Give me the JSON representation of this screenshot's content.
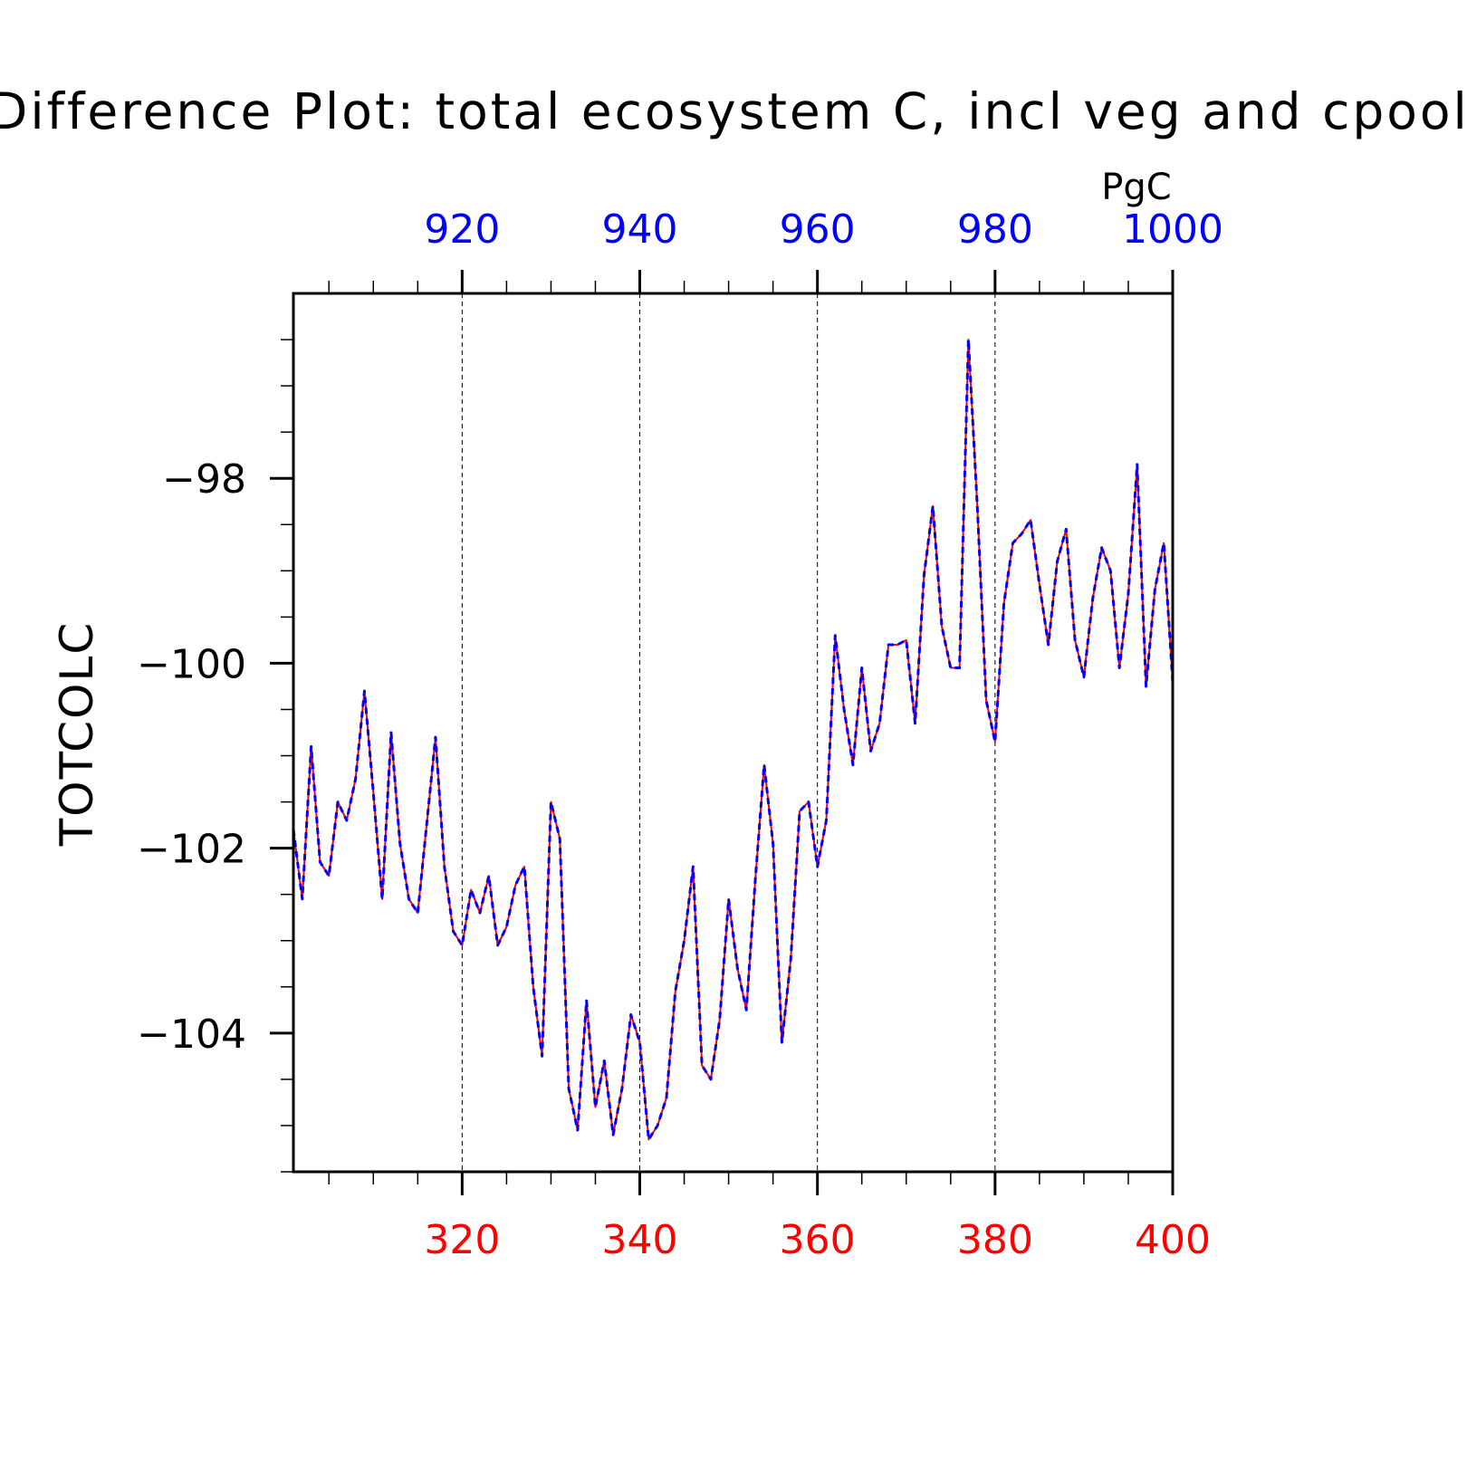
{
  "chart_data": {
    "type": "line",
    "title": "Difference Plot: total ecosystem C, incl veg and cpool",
    "ylabel": "TOTCOLC",
    "units": "PgC",
    "xlim": [
      301,
      400
    ],
    "x_top_lim": [
      901,
      1000
    ],
    "ylim": [
      -105.5,
      -96
    ],
    "x_ticks_bottom": [
      "320",
      "340",
      "360",
      "380",
      "400"
    ],
    "x_ticks_top": [
      "920",
      "940",
      "960",
      "980",
      "1000"
    ],
    "y_ticks": [
      "−98",
      "−100",
      "−102",
      "−104"
    ],
    "y_tick_values": [
      -98,
      -100,
      -102,
      -104
    ],
    "grid": "vertical dashed at major x ticks",
    "colors": {
      "bottom_axis": "#ff0000",
      "top_axis": "#0000ff",
      "text": "#000000"
    },
    "x": [
      301,
      302,
      303,
      304,
      305,
      306,
      307,
      308,
      309,
      310,
      311,
      312,
      313,
      314,
      315,
      316,
      317,
      318,
      319,
      320,
      321,
      322,
      323,
      324,
      325,
      326,
      327,
      328,
      329,
      330,
      331,
      332,
      333,
      334,
      335,
      336,
      337,
      338,
      339,
      340,
      341,
      342,
      343,
      344,
      345,
      346,
      347,
      348,
      349,
      350,
      351,
      352,
      353,
      354,
      355,
      356,
      357,
      358,
      359,
      360,
      361,
      362,
      363,
      364,
      365,
      366,
      367,
      368,
      369,
      370,
      371,
      372,
      373,
      374,
      375,
      376,
      377,
      378,
      379,
      380,
      381,
      382,
      383,
      384,
      385,
      386,
      387,
      388,
      389,
      390,
      391,
      392,
      393,
      394,
      395,
      396,
      397,
      398,
      399,
      400
    ],
    "series": [
      {
        "name": "",
        "color": "#ff0000",
        "dash": "solid",
        "values": [
          -101.8,
          -102.55,
          -100.9,
          -102.15,
          -102.3,
          -101.5,
          -101.7,
          -101.25,
          -100.3,
          -101.4,
          -102.55,
          -100.75,
          -101.95,
          -102.55,
          -102.7,
          -101.75,
          -100.8,
          -102.2,
          -102.9,
          -103.05,
          -102.45,
          -102.7,
          -102.3,
          -103.05,
          -102.85,
          -102.4,
          -102.2,
          -103.5,
          -104.25,
          -101.5,
          -101.9,
          -104.6,
          -105.05,
          -103.65,
          -104.8,
          -104.3,
          -105.1,
          -104.6,
          -103.8,
          -104.1,
          -105.15,
          -105.0,
          -104.7,
          -103.55,
          -103.0,
          -102.2,
          -104.35,
          -104.5,
          -103.85,
          -102.55,
          -103.3,
          -103.75,
          -102.35,
          -101.1,
          -101.95,
          -104.1,
          -103.2,
          -101.6,
          -101.5,
          -102.2,
          -101.7,
          -99.7,
          -100.5,
          -101.1,
          -100.05,
          -100.95,
          -100.65,
          -99.8,
          -99.8,
          -99.75,
          -100.65,
          -99.05,
          -98.3,
          -99.6,
          -100.05,
          -100.05,
          -96.5,
          -98.3,
          -100.4,
          -100.85,
          -99.35,
          -98.7,
          -98.6,
          -98.45,
          -99.15,
          -99.8,
          -98.9,
          -98.55,
          -99.75,
          -100.15,
          -99.3,
          -98.75,
          -99.0,
          -100.05,
          -99.25,
          -97.85,
          -100.25,
          -99.2,
          -98.7,
          -100.2
        ]
      },
      {
        "name": "",
        "color": "#0000ff",
        "dash": "dashed",
        "values": [
          -101.8,
          -102.55,
          -100.9,
          -102.15,
          -102.3,
          -101.5,
          -101.7,
          -101.25,
          -100.3,
          -101.4,
          -102.55,
          -100.75,
          -101.95,
          -102.55,
          -102.7,
          -101.75,
          -100.8,
          -102.2,
          -102.9,
          -103.05,
          -102.45,
          -102.7,
          -102.3,
          -103.05,
          -102.85,
          -102.4,
          -102.2,
          -103.5,
          -104.25,
          -101.5,
          -101.9,
          -104.6,
          -105.05,
          -103.65,
          -104.8,
          -104.3,
          -105.1,
          -104.6,
          -103.8,
          -104.1,
          -105.15,
          -105.0,
          -104.7,
          -103.55,
          -103.0,
          -102.2,
          -104.35,
          -104.5,
          -103.85,
          -102.55,
          -103.3,
          -103.75,
          -102.35,
          -101.1,
          -101.95,
          -104.1,
          -103.2,
          -101.6,
          -101.5,
          -102.2,
          -101.7,
          -99.7,
          -100.5,
          -101.1,
          -100.05,
          -100.95,
          -100.65,
          -99.8,
          -99.8,
          -99.75,
          -100.65,
          -99.05,
          -98.3,
          -99.6,
          -100.05,
          -100.05,
          -96.5,
          -98.3,
          -100.4,
          -100.85,
          -99.35,
          -98.7,
          -98.6,
          -98.45,
          -99.15,
          -99.8,
          -98.9,
          -98.55,
          -99.75,
          -100.15,
          -99.3,
          -98.75,
          -99.0,
          -100.05,
          -99.25,
          -97.85,
          -100.25,
          -99.2,
          -98.7,
          -100.2
        ]
      }
    ]
  }
}
